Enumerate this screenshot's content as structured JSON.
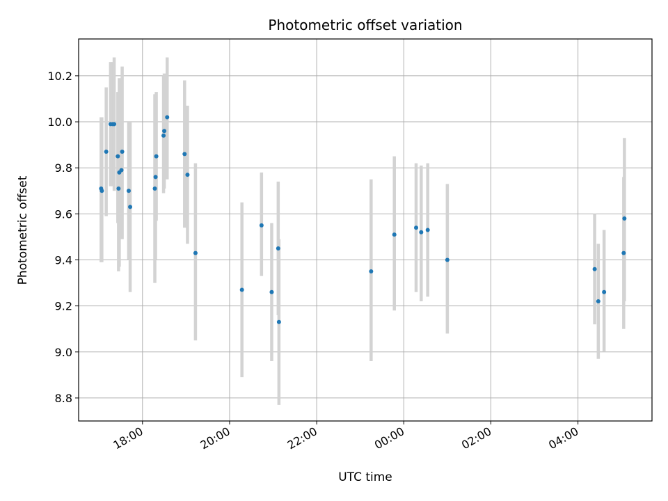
{
  "chart_data": {
    "type": "scatter",
    "title": "Photometric offset variation",
    "xlabel": "UTC time",
    "ylabel": "Photometric offset",
    "x_unit": "hours UTC",
    "x_ticks": [
      {
        "value": "18:00",
        "label": "18:00"
      },
      {
        "value": "20:00",
        "label": "20:00"
      },
      {
        "value": "22:00",
        "label": "22:00"
      },
      {
        "value": "24:00",
        "label": "00:00"
      },
      {
        "value": "26:00",
        "label": "02:00"
      },
      {
        "value": "28:00",
        "label": "04:00"
      }
    ],
    "xlim": [
      "16:32",
      "29:42"
    ],
    "y_ticks": [
      8.8,
      9.0,
      9.2,
      9.4,
      9.6,
      9.8,
      10.0,
      10.2
    ],
    "ylim": [
      8.7,
      10.36
    ],
    "grid": true,
    "marker_color": "#1f77b4",
    "errorbar_color": "#d3d3d3",
    "points": [
      {
        "x": "17:03",
        "y": 9.71,
        "lo": 9.39,
        "hi": 10.02
      },
      {
        "x": "17:04",
        "y": 9.7,
        "lo": 9.39,
        "hi": 10.02
      },
      {
        "x": "17:10",
        "y": 9.87,
        "lo": 9.59,
        "hi": 10.15
      },
      {
        "x": "17:16",
        "y": 9.99,
        "lo": 9.72,
        "hi": 10.26
      },
      {
        "x": "17:19",
        "y": 9.99,
        "lo": 9.72,
        "hi": 10.26
      },
      {
        "x": "17:21",
        "y": 9.99,
        "lo": 9.7,
        "hi": 10.28
      },
      {
        "x": "17:26",
        "y": 9.85,
        "lo": 9.56,
        "hi": 10.13
      },
      {
        "x": "17:27",
        "y": 9.71,
        "lo": 9.35,
        "hi": 10.07
      },
      {
        "x": "17:28",
        "y": 9.78,
        "lo": 9.37,
        "hi": 10.19
      },
      {
        "x": "17:31",
        "y": 9.79,
        "lo": 9.5,
        "hi": 10.09
      },
      {
        "x": "17:32",
        "y": 9.87,
        "lo": 9.49,
        "hi": 10.24
      },
      {
        "x": "17:41",
        "y": 9.7,
        "lo": 9.4,
        "hi": 10.0
      },
      {
        "x": "17:43",
        "y": 9.63,
        "lo": 9.26,
        "hi": 10.0
      },
      {
        "x": "18:17",
        "y": 9.71,
        "lo": 9.3,
        "hi": 10.12
      },
      {
        "x": "18:18",
        "y": 9.76,
        "lo": 9.4,
        "hi": 10.12
      },
      {
        "x": "18:19",
        "y": 9.85,
        "lo": 9.57,
        "hi": 10.13
      },
      {
        "x": "18:29",
        "y": 9.94,
        "lo": 9.69,
        "hi": 10.2
      },
      {
        "x": "18:30",
        "y": 9.96,
        "lo": 9.71,
        "hi": 10.21
      },
      {
        "x": "18:34",
        "y": 10.02,
        "lo": 9.75,
        "hi": 10.28
      },
      {
        "x": "18:58",
        "y": 9.86,
        "lo": 9.54,
        "hi": 10.18
      },
      {
        "x": "19:02",
        "y": 9.77,
        "lo": 9.47,
        "hi": 10.07
      },
      {
        "x": "19:13",
        "y": 9.43,
        "lo": 9.05,
        "hi": 9.82
      },
      {
        "x": "20:17",
        "y": 9.27,
        "lo": 8.89,
        "hi": 9.65
      },
      {
        "x": "20:44",
        "y": 9.55,
        "lo": 9.33,
        "hi": 9.78
      },
      {
        "x": "20:58",
        "y": 9.26,
        "lo": 8.96,
        "hi": 9.56
      },
      {
        "x": "21:07",
        "y": 9.45,
        "lo": 9.16,
        "hi": 9.74
      },
      {
        "x": "21:08",
        "y": 9.13,
        "lo": 8.77,
        "hi": 9.49
      },
      {
        "x": "23:15",
        "y": 9.35,
        "lo": 8.96,
        "hi": 9.75
      },
      {
        "x": "23:47",
        "y": 9.51,
        "lo": 9.18,
        "hi": 9.85
      },
      {
        "x": "24:17",
        "y": 9.54,
        "lo": 9.26,
        "hi": 9.82
      },
      {
        "x": "24:24",
        "y": 9.52,
        "lo": 9.22,
        "hi": 9.81
      },
      {
        "x": "24:33",
        "y": 9.53,
        "lo": 9.24,
        "hi": 9.82
      },
      {
        "x": "25:00",
        "y": 9.4,
        "lo": 9.08,
        "hi": 9.73
      },
      {
        "x": "28:23",
        "y": 9.36,
        "lo": 9.12,
        "hi": 9.6
      },
      {
        "x": "28:28",
        "y": 9.22,
        "lo": 8.97,
        "hi": 9.47
      },
      {
        "x": "28:36",
        "y": 9.26,
        "lo": 9.0,
        "hi": 9.53
      },
      {
        "x": "29:03",
        "y": 9.43,
        "lo": 9.1,
        "hi": 9.76
      },
      {
        "x": "29:04",
        "y": 9.58,
        "lo": 9.22,
        "hi": 9.93
      }
    ]
  }
}
